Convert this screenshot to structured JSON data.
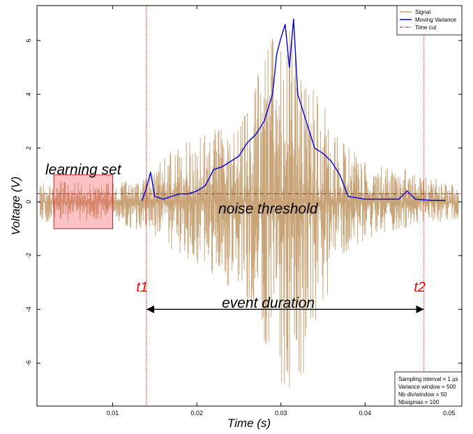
{
  "chart_data": {
    "type": "line",
    "title": "",
    "xlabel": "Time (s)",
    "ylabel": "Voltage (V)",
    "xlim": [
      0.001,
      0.0515
    ],
    "ylim": [
      -7.6,
      7.3
    ],
    "grid": false,
    "legend_position": "top-right",
    "x_ticks": [
      0.01,
      0.02,
      0.03,
      0.04,
      0.05
    ],
    "x_tick_labels": [
      "0.01",
      "0.02",
      "0.03",
      "0.04",
      "0.05"
    ],
    "y_ticks": [
      -6,
      -4,
      -2,
      0,
      2,
      4,
      6
    ],
    "y_tick_labels": [
      "-6",
      "-4",
      "-2",
      "0",
      "2",
      "4",
      "6"
    ],
    "series": [
      {
        "name": "Signal",
        "color": "#c8a478",
        "style": "solid",
        "description_points": {
          "x": [
            0.002,
            0.01,
            0.014,
            0.018,
            0.022,
            0.026,
            0.029,
            0.03,
            0.031,
            0.032,
            0.034,
            0.037,
            0.04,
            0.045,
            0.05
          ],
          "envelope_max": [
            0.8,
            0.7,
            1.0,
            2.3,
            2.7,
            3.5,
            6.8,
            7.0,
            6.8,
            5.5,
            4.5,
            2.4,
            1.5,
            1.2,
            0.7
          ],
          "envelope_min": [
            -0.8,
            -0.7,
            -1.2,
            -2.0,
            -2.8,
            -4.0,
            -6.0,
            -7.5,
            -7.0,
            -7.6,
            -4.5,
            -2.5,
            -1.4,
            -1.0,
            -0.7
          ]
        }
      },
      {
        "name": "Moving Variance",
        "color": "#0000dd",
        "style": "solid",
        "x": [
          0.0135,
          0.014,
          0.0145,
          0.015,
          0.016,
          0.017,
          0.018,
          0.019,
          0.02,
          0.021,
          0.022,
          0.023,
          0.024,
          0.025,
          0.026,
          0.027,
          0.028,
          0.029,
          0.0295,
          0.03,
          0.0305,
          0.031,
          0.0315,
          0.032,
          0.033,
          0.034,
          0.035,
          0.036,
          0.037,
          0.038,
          0.04,
          0.042,
          0.044,
          0.045,
          0.046,
          0.048,
          0.0495
        ],
        "y": [
          0.05,
          0.5,
          1.1,
          0.2,
          0.1,
          0.2,
          0.3,
          0.3,
          0.4,
          0.6,
          1.2,
          1.3,
          1.5,
          1.7,
          2.2,
          2.5,
          3.0,
          4.0,
          5.5,
          6.1,
          6.6,
          5.0,
          6.8,
          4.0,
          3.0,
          2.0,
          1.8,
          1.5,
          1.0,
          0.2,
          0.1,
          0.1,
          0.1,
          0.4,
          0.1,
          0.05,
          0.05
        ]
      },
      {
        "name": "Time cut",
        "color": "#cc2222",
        "style": "dash-dot",
        "y_constant": 0.3
      }
    ],
    "vertical_markers": [
      {
        "x": 0.014,
        "label": "t1",
        "color": "#ff0000"
      },
      {
        "x": 0.047,
        "label": "t2",
        "color": "#ff0000"
      }
    ],
    "learning_set_box": {
      "x": [
        0.003,
        0.01
      ],
      "y": [
        -1.0,
        1.0
      ],
      "label": "learning set"
    },
    "annotations": [
      {
        "text": "noise threshold",
        "x": 0.02,
        "y": -0.05
      },
      {
        "text": "event duration",
        "x": 0.025,
        "y": -3.6
      }
    ],
    "duration_arrow": {
      "from": 0.014,
      "to": 0.047,
      "y": -4.0
    }
  },
  "info_box": {
    "lines": [
      "Sampling interval = 1 µs",
      "Variance window = 500",
      "Nb div/window = 50",
      "Nbsigmas = 100"
    ]
  },
  "legend": {
    "entries": [
      "Signal",
      "Moving Variance",
      "Time cut"
    ]
  }
}
